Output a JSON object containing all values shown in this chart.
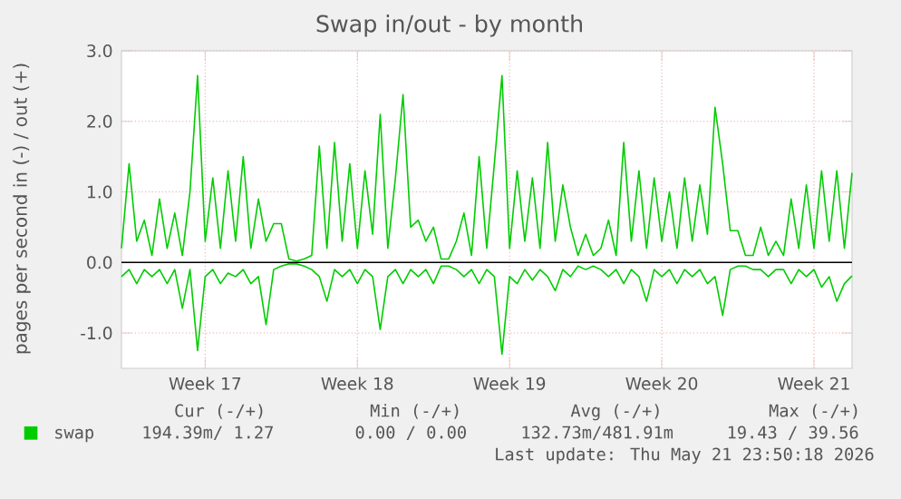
{
  "chart_data": {
    "type": "line",
    "title": "Swap in/out - by month",
    "ylabel": "pages per second in (-) / out (+)",
    "categories": [
      null,
      null,
      null,
      null,
      null,
      null,
      null,
      null,
      null,
      null,
      null,
      "Week 17",
      null,
      null,
      null,
      null,
      null,
      null,
      null,
      null,
      null,
      null,
      null,
      null,
      null,
      null,
      null,
      null,
      null,
      null,
      null,
      "Week 18",
      null,
      null,
      null,
      null,
      null,
      null,
      null,
      null,
      null,
      null,
      null,
      null,
      null,
      null,
      null,
      null,
      null,
      null,
      null,
      "Week 19",
      null,
      null,
      null,
      null,
      null,
      null,
      null,
      null,
      null,
      null,
      null,
      null,
      null,
      null,
      null,
      null,
      null,
      null,
      null,
      "Week 20",
      null,
      null,
      null,
      null,
      null,
      null,
      null,
      null,
      null,
      null,
      null,
      null,
      null,
      null,
      null,
      null,
      null,
      null,
      null,
      "Week 21",
      null,
      null,
      null,
      null,
      null
    ],
    "series": [
      {
        "name": "swap",
        "color": "#00cc00",
        "values": [
          0.2,
          1.4,
          0.3,
          0.6,
          0.1,
          0.9,
          0.2,
          0.7,
          0.1,
          1.0,
          2.65,
          0.3,
          1.2,
          0.2,
          1.3,
          0.3,
          1.5,
          0.2,
          0.9,
          0.3,
          0.55,
          0.55,
          0.05,
          0.02,
          0.05,
          0.1,
          1.65,
          0.2,
          1.7,
          0.3,
          1.4,
          0.2,
          1.3,
          0.4,
          2.1,
          0.2,
          1.2,
          2.38,
          0.5,
          0.6,
          0.3,
          0.5,
          0.05,
          0.05,
          0.3,
          0.7,
          0.1,
          1.5,
          0.2,
          1.4,
          2.65,
          0.2,
          1.3,
          0.3,
          1.2,
          0.2,
          1.7,
          0.3,
          1.1,
          0.5,
          0.1,
          0.4,
          0.1,
          0.2,
          0.6,
          0.1,
          1.7,
          0.3,
          1.3,
          0.2,
          1.2,
          0.3,
          1.0,
          0.2,
          1.2,
          0.3,
          1.1,
          0.4,
          2.2,
          1.4,
          0.45,
          0.45,
          0.1,
          0.1,
          0.5,
          0.1,
          0.3,
          0.1,
          0.9,
          0.2,
          1.1,
          0.2,
          1.3,
          0.3,
          1.3,
          0.2,
          1.27
        ]
      },
      {
        "color": "#00cc00",
        "values": [
          -0.2,
          -0.1,
          -0.3,
          -0.1,
          -0.2,
          -0.1,
          -0.3,
          -0.1,
          -0.65,
          -0.1,
          -1.25,
          -0.2,
          -0.1,
          -0.3,
          -0.15,
          -0.2,
          -0.1,
          -0.3,
          -0.2,
          -0.88,
          -0.1,
          -0.05,
          -0.02,
          -0.02,
          -0.05,
          -0.1,
          -0.2,
          -0.55,
          -0.1,
          -0.2,
          -0.1,
          -0.3,
          -0.1,
          -0.2,
          -0.95,
          -0.2,
          -0.1,
          -0.3,
          -0.1,
          -0.2,
          -0.1,
          -0.3,
          -0.05,
          -0.05,
          -0.1,
          -0.2,
          -0.1,
          -0.3,
          -0.1,
          -0.2,
          -1.3,
          -0.2,
          -0.3,
          -0.1,
          -0.25,
          -0.1,
          -0.2,
          -0.4,
          -0.1,
          -0.2,
          -0.05,
          -0.1,
          -0.05,
          -0.1,
          -0.2,
          -0.1,
          -0.3,
          -0.1,
          -0.2,
          -0.55,
          -0.1,
          -0.2,
          -0.1,
          -0.3,
          -0.1,
          -0.2,
          -0.1,
          -0.3,
          -0.2,
          -0.75,
          -0.1,
          -0.05,
          -0.05,
          -0.1,
          -0.1,
          -0.2,
          -0.1,
          -0.1,
          -0.3,
          -0.1,
          -0.2,
          -0.1,
          -0.35,
          -0.2,
          -0.55,
          -0.3,
          -0.19
        ]
      }
    ],
    "ylim": [
      -1.5,
      3.0
    ],
    "yticks": [
      {
        "value": -1,
        "label": "-1.0"
      },
      {
        "value": 0,
        "label": "0.0"
      },
      {
        "value": 1,
        "label": "1.0"
      },
      {
        "value": 2,
        "label": "2.0"
      },
      {
        "value": 3,
        "label": "3.0"
      }
    ],
    "ref_lines": [
      {
        "axis": "y",
        "value": 0,
        "color": "#000000"
      }
    ],
    "grid": true,
    "legend": "bottom",
    "annotations": [
      "Cur (-/+)",
      "Min (-/+)",
      "Avg (-/+)",
      "Max (-/+)",
      "194.39m/   1.27",
      "0.00 /  0.00",
      "132.73m/481.91m",
      "19.43 / 39.56",
      "Last update: Thu May 21 23:50:18 2026"
    ]
  }
}
